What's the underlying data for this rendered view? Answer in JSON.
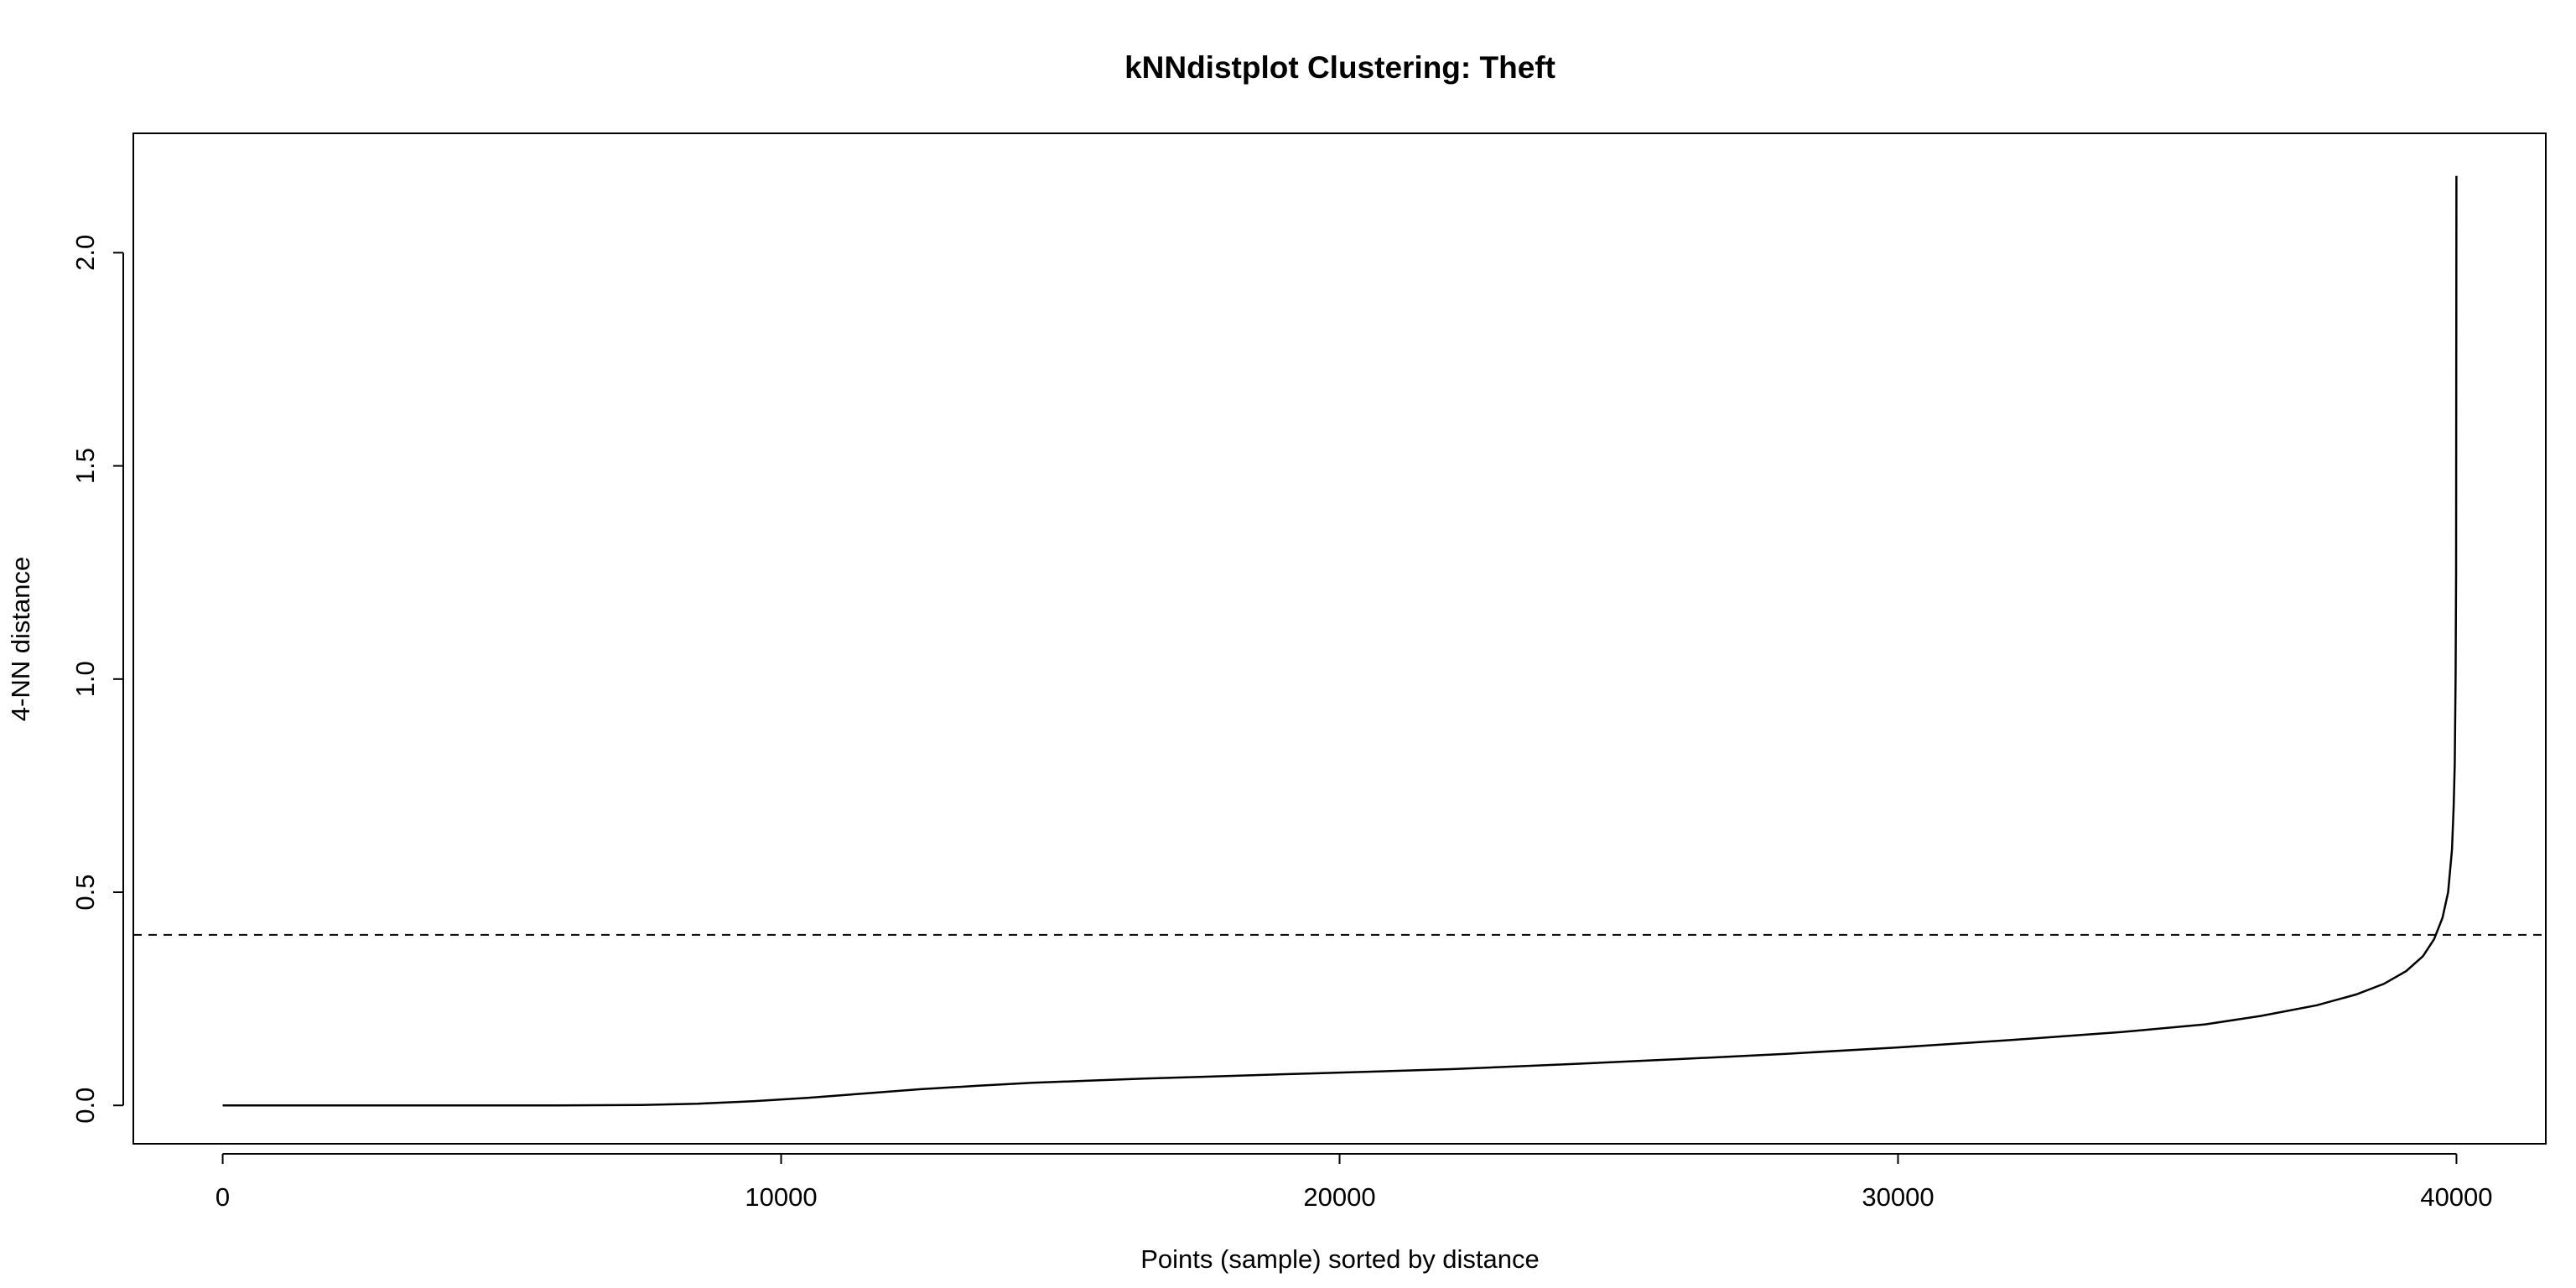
{
  "chart_data": {
    "type": "line",
    "title": "kNNdistplot Clustering: Theft",
    "xlabel": "Points (sample) sorted by distance",
    "ylabel": "4-NN distance",
    "xlim": [
      -1600,
      41600
    ],
    "ylim": [
      -0.09,
      2.28
    ],
    "x_ticks": [
      0,
      10000,
      20000,
      30000,
      40000
    ],
    "x_tick_labels": [
      "0",
      "10000",
      "20000",
      "30000",
      "40000"
    ],
    "y_ticks": [
      0.0,
      0.5,
      1.0,
      1.5,
      2.0
    ],
    "y_tick_labels": [
      "0.0",
      "0.5",
      "1.0",
      "1.5",
      "2.0"
    ],
    "grid": false,
    "series": [
      {
        "x": [
          0,
          2000,
          4000,
          6000,
          7500,
          8500,
          9500,
          10500,
          11500,
          12500,
          13500,
          14500,
          15500,
          16500,
          17500,
          18500,
          19500,
          20500,
          22000,
          24000,
          26000,
          28000,
          30000,
          32000,
          34000,
          35500,
          36500,
          37500,
          38200,
          38700,
          39100,
          39400,
          39600,
          39750,
          39850,
          39920,
          39950,
          39970,
          39985,
          39993,
          40000
        ],
        "y": [
          0.0,
          0.0,
          0.0,
          0.0,
          0.001,
          0.004,
          0.01,
          0.018,
          0.028,
          0.038,
          0.046,
          0.053,
          0.058,
          0.063,
          0.067,
          0.071,
          0.075,
          0.079,
          0.085,
          0.096,
          0.108,
          0.121,
          0.136,
          0.153,
          0.172,
          0.19,
          0.21,
          0.235,
          0.26,
          0.285,
          0.315,
          0.35,
          0.39,
          0.44,
          0.5,
          0.6,
          0.7,
          0.8,
          1.0,
          1.25,
          2.18
        ]
      }
    ],
    "reference_lines": [
      {
        "orientation": "horizontal",
        "y": 0.4,
        "style": "dashed"
      }
    ]
  }
}
